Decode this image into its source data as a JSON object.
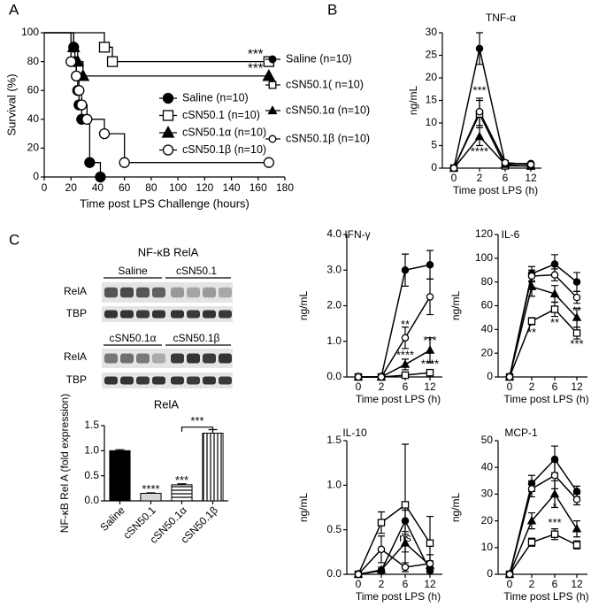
{
  "panel_labels": [
    "A",
    "B",
    "C"
  ],
  "blot": {
    "title": "NF-κB RelA",
    "panels": [
      {
        "groups": [
          "Saline",
          "cSN50.1"
        ],
        "rows": [
          "RelA",
          "TBP"
        ]
      },
      {
        "groups": [
          "cSN50.1α",
          "cSN50.1β"
        ],
        "rows": [
          "RelA",
          "TBP"
        ]
      }
    ]
  },
  "chart_data": [
    {
      "type": "step",
      "xlabel": "Time post LPS Challenge (hours)",
      "ylabel": "Survival (%)",
      "xlim": [
        0,
        180
      ],
      "xticks": [
        0,
        20,
        40,
        60,
        80,
        100,
        120,
        140,
        160,
        180
      ],
      "ylim": [
        0,
        100
      ],
      "yticks": [
        0,
        20,
        40,
        60,
        80,
        100
      ],
      "color": "#000000",
      "series": [
        {
          "name": "Saline (n=10)",
          "marker": "filled-circle",
          "x": [
            0,
            22,
            23,
            24,
            25,
            26,
            28,
            34,
            42
          ],
          "values": [
            100,
            90,
            80,
            70,
            60,
            50,
            40,
            10,
            0
          ]
        },
        {
          "name": "cSN50.1 (n=10)",
          "marker": "open-square",
          "x": [
            0,
            45,
            51,
            168
          ],
          "values": [
            100,
            90,
            80,
            80
          ]
        },
        {
          "name": "cSN50.1α (n=10)",
          "marker": "filled-triangle",
          "x": [
            0,
            22,
            25,
            29,
            168
          ],
          "values": [
            100,
            90,
            80,
            70,
            70
          ]
        },
        {
          "name": "cSN50.1β (n=10)",
          "marker": "open-circle",
          "x": [
            0,
            20,
            24,
            26,
            28,
            32,
            45,
            60,
            168
          ],
          "values": [
            100,
            80,
            70,
            60,
            50,
            40,
            30,
            10,
            10
          ]
        }
      ],
      "annotations": [
        {
          "text": "***",
          "x": 158,
          "y": 85
        },
        {
          "text": "***",
          "x": 158,
          "y": 75
        }
      ]
    },
    {
      "type": "line",
      "title": "TNF-α",
      "xlabel": "Time post LPS (h)",
      "ylabel": "ng/mL",
      "categories": [
        "0",
        "2",
        "6",
        "12"
      ],
      "ylim": [
        0,
        30
      ],
      "yticks": [
        0,
        5,
        10,
        15,
        20,
        25,
        30
      ],
      "series": [
        {
          "name": "Saline (n=10)",
          "marker": "filled-circle",
          "values": [
            0,
            26.5,
            1.0,
            1.0
          ],
          "errors": [
            0,
            3.5,
            0.5,
            0.3
          ]
        },
        {
          "name": "cSN50.1( n=10)",
          "marker": "open-square",
          "values": [
            0,
            12,
            0.5,
            0.5
          ],
          "errors": [
            0,
            3,
            0.3,
            0.2
          ]
        },
        {
          "name": "cSN50.1α (n=10)",
          "marker": "filled-triangle",
          "values": [
            0,
            7,
            0.8,
            0.4
          ],
          "errors": [
            0,
            2,
            0.4,
            0.2
          ]
        },
        {
          "name": "cSN50.1β (n=10)",
          "marker": "open-circle",
          "values": [
            0,
            12.5,
            1.2,
            0.8
          ],
          "errors": [
            0,
            3,
            0.5,
            0.3
          ]
        }
      ],
      "annotations": [
        {
          "text": "***",
          "x": "2",
          "y": 17
        },
        {
          "text": "****",
          "x": "2",
          "y": 3.5
        }
      ]
    },
    {
      "type": "line",
      "title": "IFN-γ",
      "xlabel": "Time post LPS (h)",
      "ylabel": "ng/mL",
      "categories": [
        "0",
        "2",
        "6",
        "12"
      ],
      "ylim": [
        0,
        4
      ],
      "yticks": [
        {
          "value": 0,
          "label": "0.0"
        },
        {
          "value": 1,
          "label": "1.0"
        },
        {
          "value": 2,
          "label": "2.0"
        },
        {
          "value": 3,
          "label": "3.0"
        },
        {
          "value": 4,
          "label": "4.0"
        }
      ],
      "series": [
        {
          "marker": "filled-circle",
          "values": [
            0,
            0,
            3.0,
            3.15
          ],
          "errors": [
            0,
            0,
            0.45,
            0.4
          ]
        },
        {
          "marker": "open-square",
          "values": [
            0,
            0,
            0.05,
            0.12
          ],
          "errors": [
            0,
            0,
            0.02,
            0.05
          ]
        },
        {
          "marker": "filled-triangle",
          "values": [
            0,
            0,
            0.35,
            0.75
          ],
          "errors": [
            0,
            0,
            0.15,
            0.35
          ]
        },
        {
          "marker": "open-circle",
          "values": [
            0,
            0,
            1.1,
            2.25
          ],
          "errors": [
            0,
            0,
            0.3,
            0.5
          ]
        }
      ],
      "annotations": [
        {
          "text": "**",
          "x": "6",
          "y": 1.45
        },
        {
          "text": "****",
          "x": "6",
          "y": 0.6
        },
        {
          "text": "***",
          "x": "12",
          "y": 1.0
        },
        {
          "text": "****",
          "x": "12",
          "y": 0.35
        }
      ]
    },
    {
      "type": "line",
      "title": "IL-6",
      "xlabel": "Time post LPS (h)",
      "ylabel": "ng/mL",
      "categories": [
        "0",
        "2",
        "6",
        "12"
      ],
      "ylim": [
        0,
        120
      ],
      "yticks": [
        0,
        20,
        40,
        60,
        80,
        100,
        120
      ],
      "series": [
        {
          "marker": "filled-circle",
          "values": [
            0,
            87,
            95,
            80
          ],
          "errors": [
            0,
            6,
            8,
            8
          ]
        },
        {
          "marker": "open-square",
          "values": [
            0,
            47,
            57,
            37
          ],
          "errors": [
            0,
            3,
            6,
            5
          ]
        },
        {
          "marker": "filled-triangle",
          "values": [
            0,
            76,
            70,
            50
          ],
          "errors": [
            0,
            8,
            7,
            8
          ]
        },
        {
          "marker": "open-circle",
          "values": [
            0,
            85,
            86,
            67
          ],
          "errors": [
            0,
            5,
            5,
            5
          ]
        }
      ],
      "annotations": [
        {
          "text": "**",
          "x": "2",
          "y": 37
        },
        {
          "text": "*",
          "x": "6",
          "y": 66
        },
        {
          "text": "**",
          "x": "6",
          "y": 45
        },
        {
          "text": "**",
          "x": "12",
          "y": 55
        },
        {
          "text": "***",
          "x": "12",
          "y": 27
        }
      ]
    },
    {
      "type": "line",
      "title": "IL-10",
      "xlabel": "Time post LPS (h)",
      "ylabel": "ng/mL",
      "categories": [
        "0",
        "2",
        "6",
        "12"
      ],
      "ylim": [
        0,
        1.5
      ],
      "yticks": [
        {
          "value": 0,
          "label": "0.0"
        },
        {
          "value": 0.5,
          "label": "0.5"
        },
        {
          "value": 1,
          "label": "1.0"
        },
        {
          "value": 1.5,
          "label": "1.5"
        }
      ],
      "series": [
        {
          "marker": "filled-circle",
          "values": [
            0,
            0.04,
            0.6,
            0.04
          ],
          "errors": [
            0,
            0.02,
            0.12,
            0.02
          ]
        },
        {
          "marker": "open-square",
          "values": [
            0,
            0.58,
            0.78,
            0.35
          ],
          "errors": [
            0,
            0.12,
            0.68,
            0.3
          ]
        },
        {
          "marker": "filled-triangle",
          "values": [
            0,
            0.05,
            0.35,
            0.1
          ],
          "errors": [
            0,
            0.03,
            0.1,
            0.05
          ]
        },
        {
          "marker": "open-circle",
          "values": [
            0,
            0.28,
            0.08,
            0.12
          ],
          "errors": [
            0,
            0.15,
            0.05,
            0.1
          ]
        }
      ],
      "annotations": [
        {
          "text": "ns",
          "x": "6",
          "y": 0.4
        }
      ]
    },
    {
      "type": "line",
      "title": "MCP-1",
      "xlabel": "Time post LPS (h)",
      "ylabel": "ng/mL",
      "categories": [
        "0",
        "2",
        "6",
        "12"
      ],
      "ylim": [
        0,
        50
      ],
      "yticks": [
        0,
        10,
        20,
        30,
        40,
        50
      ],
      "series": [
        {
          "marker": "filled-circle",
          "values": [
            0,
            34,
            43,
            31
          ],
          "errors": [
            0,
            3,
            5,
            2
          ]
        },
        {
          "marker": "open-square",
          "values": [
            0,
            12,
            15,
            11
          ],
          "errors": [
            0,
            1.5,
            2,
            1.5
          ]
        },
        {
          "marker": "filled-triangle",
          "values": [
            0,
            20,
            30,
            17
          ],
          "errors": [
            0,
            3,
            5,
            3
          ]
        },
        {
          "marker": "open-circle",
          "values": [
            0,
            32,
            37,
            28
          ],
          "errors": [
            0,
            3,
            5,
            2
          ]
        }
      ],
      "annotations": [
        {
          "text": "*",
          "x": "6",
          "y": 25
        },
        {
          "text": "***",
          "x": "6",
          "y": 19
        }
      ]
    },
    {
      "type": "bar",
      "title": "RelA",
      "ylabel": "NF-κB Rel A (fold expression)",
      "categories": [
        "Saline",
        "cSN50.1",
        "cSN50.1α",
        "cSN50.1β"
      ],
      "values": [
        1.0,
        0.15,
        0.32,
        1.35
      ],
      "errors": [
        0.02,
        0.01,
        0.02,
        0.07
      ],
      "patterns": [
        "solid-black",
        "solid-lightgray",
        "horizontal-stripes",
        "vertical-stripes"
      ],
      "ylim": [
        0,
        1.5
      ],
      "yticks": [
        {
          "value": 0,
          "label": "0.0"
        },
        {
          "value": 0.5,
          "label": "0.5"
        },
        {
          "value": 1,
          "label": "1.0"
        },
        {
          "value": 1.5,
          "label": "1.5"
        }
      ],
      "annotations": [
        {
          "text": "****",
          "x": "cSN50.1",
          "y": 0.22
        },
        {
          "text": "***",
          "x": "cSN50.1α",
          "y": 0.4
        },
        {
          "text": "***",
          "x": [
            "cSN50.1α",
            "cSN50.1β"
          ],
          "y": 1.47
        }
      ]
    }
  ]
}
